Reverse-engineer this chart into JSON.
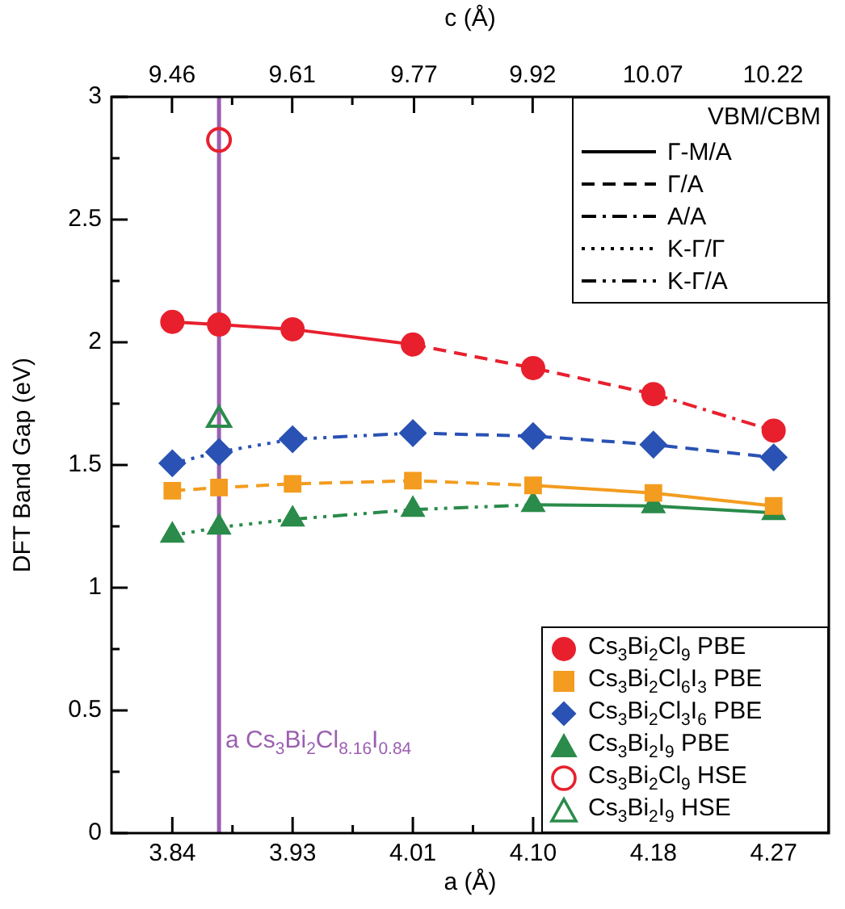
{
  "chart_data": {
    "type": "line",
    "xlabel": "a (Å)",
    "x2label": "c (Å)",
    "ylabel": "DFT Band Gap (eV)",
    "legend_title": "VBM/CBM",
    "legend": "right",
    "xlim": [
      3.797,
      4.304
    ],
    "xticks": [
      3.84,
      {
        "value": 3.8825,
        "label": null
      },
      {
        "value": 3.925,
        "label": "3.93"
      },
      {
        "value": 3.9675,
        "label": null
      },
      4.01,
      {
        "value": 4.0525,
        "label": null
      },
      {
        "value": 4.095,
        "label": "4.10"
      },
      {
        "value": 4.1375,
        "label": null
      },
      4.18,
      {
        "value": 4.2225,
        "label": null
      },
      {
        "value": 4.265,
        "label": "4.27"
      }
    ],
    "x2lim": [
      9.3835,
      10.2905
    ],
    "x2ticks": [
      9.46,
      {
        "value": 9.536,
        "label": null
      },
      {
        "value": 9.612,
        "label": "9.61"
      },
      {
        "value": 9.688,
        "label": null
      },
      {
        "value": 9.766,
        "label": "9.77"
      },
      {
        "value": 9.84,
        "label": null
      },
      {
        "value": 9.916,
        "label": "9.92"
      },
      {
        "value": 9.992,
        "label": null
      },
      {
        "value": 10.068,
        "label": "10.07"
      },
      {
        "value": 10.144,
        "label": null
      },
      10.22
    ],
    "ylim": [
      0,
      3
    ],
    "yticks": [
      0,
      {
        "value": 0.25,
        "label": null
      },
      0.5,
      {
        "value": 0.75,
        "label": null
      },
      1,
      {
        "value": 1.25,
        "label": null
      },
      1.5,
      {
        "value": 1.75,
        "label": null
      },
      2,
      {
        "value": 2.25,
        "label": null
      },
      2.5,
      {
        "value": 2.75,
        "label": null
      },
      3
    ],
    "ref_lines": [
      {
        "axis": "x",
        "value": 3.873,
        "label": "a Cs$_{3}$Bi$_{2}$Cl$_{8.16}$I$_{0.84}$",
        "color": "#9b5fb0"
      }
    ],
    "series": [
      {
        "type": "line",
        "color": "#e8202e",
        "line_style": "solid",
        "x": [
          3.84,
          3.873,
          3.925,
          4.01
        ],
        "values": [
          2.083,
          2.072,
          2.053,
          1.991
        ]
      },
      {
        "type": "line",
        "color": "#e8202e",
        "line_style": "dashed",
        "x": [
          4.01,
          4.095,
          4.18
        ],
        "values": [
          1.991,
          1.895,
          1.789
        ]
      },
      {
        "type": "line",
        "color": "#e8202e",
        "line_style": "dashdot",
        "x": [
          4.18,
          4.265
        ],
        "values": [
          1.789,
          1.64
        ]
      },
      {
        "type": "line",
        "color": "#2a52b4",
        "line_style": "dotted",
        "x": [
          3.84,
          3.873,
          3.925
        ],
        "values": [
          1.507,
          1.553,
          1.605
        ]
      },
      {
        "type": "line",
        "color": "#2a52b4",
        "line_style": "dashdotdot",
        "x": [
          3.925,
          4.01
        ],
        "values": [
          1.605,
          1.63
        ]
      },
      {
        "type": "line",
        "color": "#2a52b4",
        "line_style": "dashed",
        "x": [
          4.01,
          4.095,
          4.18,
          4.265
        ],
        "values": [
          1.63,
          1.618,
          1.583,
          1.531
        ]
      },
      {
        "type": "line",
        "color": "#f39c1f",
        "line_style": "dashed",
        "x": [
          3.84,
          3.873,
          3.925,
          4.01,
          4.095
        ],
        "values": [
          1.395,
          1.408,
          1.423,
          1.436,
          1.417
        ]
      },
      {
        "type": "line",
        "color": "#f39c1f",
        "line_style": "solid",
        "x": [
          4.095,
          4.18,
          4.265
        ],
        "values": [
          1.417,
          1.386,
          1.333
        ]
      },
      {
        "type": "line",
        "color": "#2a8b4a",
        "line_style": "dotted",
        "x": [
          3.84,
          3.873,
          3.925
        ],
        "values": [
          1.213,
          1.246,
          1.279
        ]
      },
      {
        "type": "line",
        "color": "#2a8b4a",
        "line_style": "dashdotdot",
        "x": [
          3.925,
          4.01,
          4.095
        ],
        "values": [
          1.279,
          1.318,
          1.338
        ]
      },
      {
        "type": "line",
        "color": "#2a8b4a",
        "line_style": "solid",
        "x": [
          4.095,
          4.18,
          4.265
        ],
        "values": [
          1.338,
          1.333,
          1.305
        ]
      },
      {
        "type": "scatter",
        "name": "Cs$_{3}$Bi$_{2}$Cl$_{9}$ PBE",
        "color": "#e8202e",
        "marker": "circle",
        "x": [
          3.84,
          3.873,
          3.925,
          4.01,
          4.095,
          4.18,
          4.265
        ],
        "values": [
          2.083,
          2.072,
          2.053,
          1.991,
          1.895,
          1.789,
          1.64
        ]
      },
      {
        "type": "scatter",
        "name": "Cs$_{3}$Bi$_{2}$Cl$_{6}$I$_{3}$ PBE",
        "color": "#f39c1f",
        "marker": "square",
        "x": [
          3.84,
          3.873,
          3.925,
          4.01,
          4.095,
          4.18,
          4.265
        ],
        "values": [
          1.395,
          1.408,
          1.423,
          1.436,
          1.417,
          1.386,
          1.333
        ]
      },
      {
        "type": "scatter",
        "name": "Cs$_{3}$Bi$_{2}$Cl$_{3}$I$_{6}$ PBE",
        "color": "#2a52b4",
        "marker": "diamond",
        "x": [
          3.84,
          3.873,
          3.925,
          4.01,
          4.095,
          4.18,
          4.265
        ],
        "values": [
          1.507,
          1.553,
          1.605,
          1.63,
          1.618,
          1.583,
          1.531
        ]
      },
      {
        "type": "scatter",
        "name": "Cs$_{3}$Bi$_{2}$I$_{9}$ PBE",
        "color": "#2a8b4a",
        "marker": "triangle",
        "x": [
          3.84,
          3.873,
          3.925,
          4.01,
          4.095,
          4.18,
          4.265
        ],
        "values": [
          1.213,
          1.246,
          1.279,
          1.318,
          1.338,
          1.333,
          1.305
        ]
      },
      {
        "type": "scatter",
        "name": "Cs$_{3}$Bi$_{2}$Cl$_{9}$ HSE",
        "color": "#e8202e",
        "marker": "circle-open",
        "x": [
          3.873
        ],
        "values": [
          2.825
        ]
      },
      {
        "type": "scatter",
        "name": "Cs$_{3}$Bi$_{2}$I$_{9}$ HSE",
        "color": "#2a8b4a",
        "marker": "triangle-open",
        "x": [
          3.873
        ],
        "values": [
          1.684
        ]
      },
      {
        "type": "line",
        "name": "Γ-M/A",
        "color": "#000000",
        "line_style": "solid"
      },
      {
        "type": "line",
        "name": "Γ/A",
        "color": "#000000",
        "line_style": "dashed"
      },
      {
        "type": "line",
        "name": "A/A",
        "color": "#000000",
        "line_style": "dashdot"
      },
      {
        "type": "line",
        "name": "K-Γ/Γ",
        "color": "#000000",
        "line_style": "dotted"
      },
      {
        "type": "line",
        "name": "K-Γ/A",
        "color": "#000000",
        "line_style": "dashdotdot"
      }
    ]
  }
}
